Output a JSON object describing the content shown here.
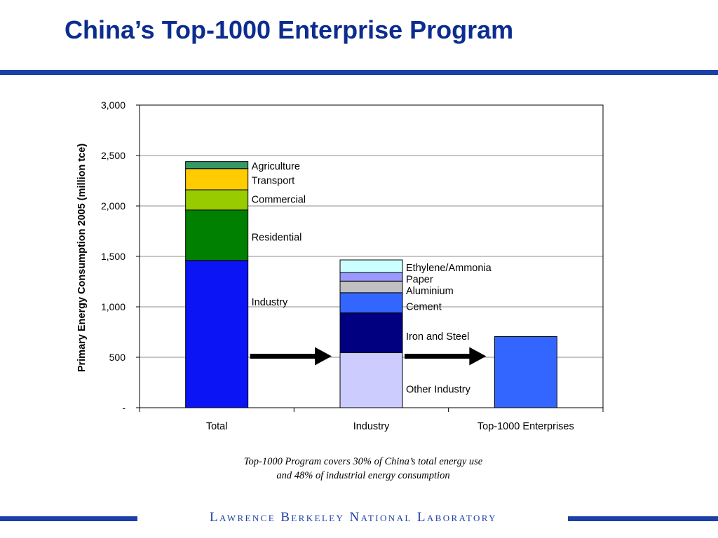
{
  "slide": {
    "title": "China’s Top-1000 Enterprise Program",
    "caption_line1": "Top-1000 Program covers 30% of China’s total energy use",
    "caption_line2": "and 48% of industrial energy consumption",
    "footer": "Lawrence Berkeley National Laboratory"
  },
  "colors": {
    "accent": "#1c3fa8",
    "title": "#0c2d8f"
  },
  "chart_data": {
    "type": "bar",
    "stacked": true,
    "ylabel": "Primary Energy Consumption 2005 (million tce)",
    "ylim": [
      0,
      3000
    ],
    "yticks": [
      0,
      500,
      1000,
      1500,
      2000,
      2500,
      3000
    ],
    "ytick_labels": [
      "-",
      "500",
      "1,000",
      "1,500",
      "2,000",
      "2,500",
      "3,000"
    ],
    "grid": true,
    "categories": [
      "Total",
      "Industry",
      "Top-1000 Enterprises"
    ],
    "stacks": [
      {
        "category": "Total",
        "segments": [
          {
            "label": "Industry",
            "value": 1460,
            "color": "#0a14f5"
          },
          {
            "label": "Residential",
            "value": 500,
            "color": "#008000"
          },
          {
            "label": "Commercial",
            "value": 200,
            "color": "#99cc00"
          },
          {
            "label": "Transport",
            "value": 210,
            "color": "#ffcc00"
          },
          {
            "label": "Agriculture",
            "value": 70,
            "color": "#339966"
          }
        ]
      },
      {
        "category": "Industry",
        "segments": [
          {
            "label": "Other Industry",
            "value": 545,
            "color": "#ccccff"
          },
          {
            "label": "Iron and Steel",
            "value": 395,
            "color": "#000080"
          },
          {
            "label": "Cement",
            "value": 200,
            "color": "#3366ff"
          },
          {
            "label": "Aluminium",
            "value": 115,
            "color": "#c0c0c0"
          },
          {
            "label": "Paper",
            "value": 85,
            "color": "#9999ff"
          },
          {
            "label": "Ethylene/Ammonia",
            "value": 125,
            "color": "#ccffff"
          }
        ]
      },
      {
        "category": "Top-1000 Enterprises",
        "segments": [
          {
            "label": "",
            "value": 705,
            "color": "#3366ff"
          }
        ]
      }
    ],
    "annotations": [
      {
        "text": "Agriculture",
        "y": 2395,
        "near": "Total"
      },
      {
        "text": "Transport",
        "y": 2255,
        "near": "Total"
      },
      {
        "text": "Commercial",
        "y": 2065,
        "near": "Total"
      },
      {
        "text": "Residential",
        "y": 1690,
        "near": "Total"
      },
      {
        "text": "Industry",
        "y": 1050,
        "near": "Total"
      },
      {
        "text": "Ethylene/Ammonia",
        "y": 1390,
        "near": "Industry"
      },
      {
        "text": "Paper",
        "y": 1275,
        "near": "Industry"
      },
      {
        "text": "Aluminium",
        "y": 1160,
        "near": "Industry"
      },
      {
        "text": "Cement",
        "y": 1005,
        "near": "Industry"
      },
      {
        "text": "Iron and Steel",
        "y": 710,
        "near": "Industry"
      },
      {
        "text": "Other Industry",
        "y": 185,
        "near": "Industry"
      }
    ],
    "arrows": [
      {
        "from": "Total",
        "to": "Industry",
        "y": 510
      },
      {
        "from": "Industry",
        "to": "Top-1000 Enterprises",
        "y": 510
      }
    ]
  }
}
